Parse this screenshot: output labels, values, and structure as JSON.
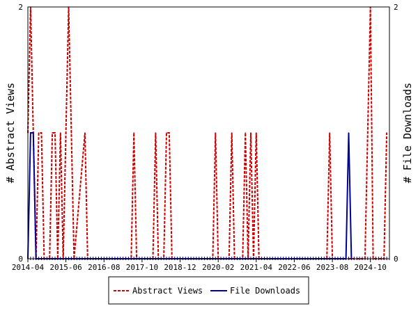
{
  "chart_data": {
    "type": "line",
    "title": "",
    "x_tick_labels": [
      "2014-04",
      "2015-06",
      "2016-08",
      "2017-10",
      "2018-12",
      "2020-02",
      "2021-04",
      "2022-06",
      "2023-08",
      "2024-10"
    ],
    "x_range": [
      "2014-04",
      "2025-05"
    ],
    "y_left_label": "# Abstract Views",
    "y_right_label": "# File Downloads",
    "y_left_range": [
      0,
      2
    ],
    "y_right_range": [
      0,
      2
    ],
    "y_left_ticks": [
      "0",
      "2"
    ],
    "y_right_ticks": [
      "0",
      "2"
    ],
    "legend_position": "bottom-center",
    "series": [
      {
        "name": "Abstract Views",
        "color": "#cc0000",
        "line_style": "dashed",
        "axis": "left",
        "points": [
          [
            "2014-04",
            1
          ],
          [
            "2014-05",
            2
          ],
          [
            "2014-06",
            1
          ],
          [
            "2014-07",
            0
          ],
          [
            "2014-08",
            1
          ],
          [
            "2014-09",
            1
          ],
          [
            "2014-10",
            0
          ],
          [
            "2014-11",
            0
          ],
          [
            "2014-12",
            0
          ],
          [
            "2015-01",
            1
          ],
          [
            "2015-02",
            1
          ],
          [
            "2015-03",
            0
          ],
          [
            "2015-04",
            1
          ],
          [
            "2015-05",
            0
          ],
          [
            "2015-06",
            1
          ],
          [
            "2015-07",
            2
          ],
          [
            "2015-08",
            1
          ],
          [
            "2015-09",
            0
          ],
          [
            "2016-01",
            1
          ],
          [
            "2016-02",
            0
          ],
          [
            "2017-06",
            0
          ],
          [
            "2017-07",
            1
          ],
          [
            "2017-08",
            0
          ],
          [
            "2018-02",
            0
          ],
          [
            "2018-03",
            1
          ],
          [
            "2018-04",
            0
          ],
          [
            "2018-06",
            0
          ],
          [
            "2018-07",
            1
          ],
          [
            "2018-08",
            1
          ],
          [
            "2018-09",
            0
          ],
          [
            "2019-12",
            0
          ],
          [
            "2020-01",
            1
          ],
          [
            "2020-02",
            0
          ],
          [
            "2020-06",
            0
          ],
          [
            "2020-07",
            1
          ],
          [
            "2020-08",
            0
          ],
          [
            "2020-11",
            0
          ],
          [
            "2020-12",
            1
          ],
          [
            "2021-01",
            0
          ],
          [
            "2021-02",
            1
          ],
          [
            "2021-03",
            0
          ],
          [
            "2021-04",
            1
          ],
          [
            "2021-05",
            0
          ],
          [
            "2023-06",
            0
          ],
          [
            "2023-07",
            1
          ],
          [
            "2023-08",
            0
          ],
          [
            "2024-08",
            0
          ],
          [
            "2024-09",
            1
          ],
          [
            "2024-10",
            2
          ],
          [
            "2024-11",
            0
          ],
          [
            "2025-03",
            0
          ],
          [
            "2025-04",
            1
          ]
        ]
      },
      {
        "name": "File Downloads",
        "color": "#000099",
        "line_style": "solid",
        "axis": "right",
        "points": [
          [
            "2014-04",
            0
          ],
          [
            "2014-05",
            1
          ],
          [
            "2014-06",
            1
          ],
          [
            "2014-07",
            0
          ],
          [
            "2024-01",
            0
          ],
          [
            "2024-02",
            1
          ],
          [
            "2024-03",
            0
          ]
        ]
      }
    ]
  }
}
